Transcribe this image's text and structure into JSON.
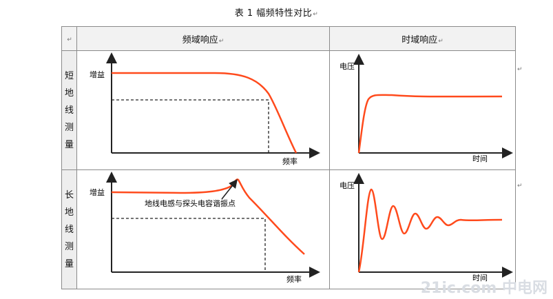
{
  "title": "表 1 幅频特性对比",
  "para_mark": "↵",
  "header": {
    "corner": "↵",
    "freq_col": "频域响应",
    "time_col": "时域响应"
  },
  "rows": [
    {
      "label": "短地线测量",
      "chars": [
        "短",
        "地",
        "线",
        "测",
        "量"
      ],
      "freq": {
        "ylabel": "增益",
        "xlabel": "频率"
      },
      "time": {
        "ylabel": "电压",
        "xlabel": "时间"
      }
    },
    {
      "label": "长地线测量",
      "chars": [
        "长",
        "地",
        "线",
        "测",
        "量"
      ],
      "freq": {
        "ylabel": "增益",
        "xlabel": "频率",
        "annotation": "地线电感与探头电容谐振点"
      },
      "time": {
        "ylabel": "电压",
        "xlabel": "时间"
      }
    }
  ],
  "watermark": "21ic.com 中电网",
  "curve_color": "#ff4a1c"
}
